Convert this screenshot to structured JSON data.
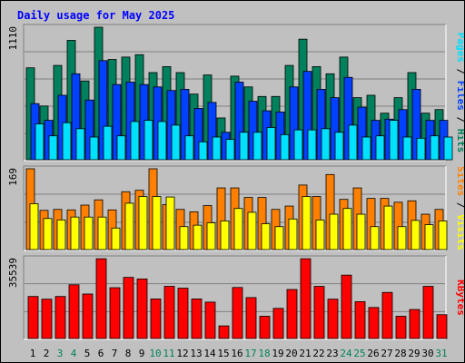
{
  "title": "Daily usage for May 2025",
  "colors": {
    "hits": "#00805c",
    "files": "#0040ff",
    "pages": "#00e0ff",
    "visits": "#ffff00",
    "sites": "#ff8000",
    "kbytes": "#ff0000",
    "title": "#0000ff",
    "weekend": "#00805c",
    "weekday": "#000000"
  },
  "chart_data": [
    {
      "type": "bar",
      "panel": "hits-files-pages",
      "title": "",
      "ylabel_max": "1110",
      "ylim": [
        0,
        1110
      ],
      "legend": [
        "Pages",
        "Files",
        "Hits"
      ],
      "x": [
        1,
        2,
        3,
        4,
        5,
        6,
        7,
        8,
        9,
        10,
        11,
        12,
        13,
        14,
        15,
        16,
        17,
        18,
        19,
        20,
        21,
        22,
        23,
        24,
        25,
        26,
        27,
        28,
        29,
        30,
        31
      ],
      "series": [
        {
          "name": "Hits",
          "values": [
            770,
            450,
            790,
            1000,
            660,
            1110,
            840,
            860,
            880,
            730,
            780,
            730,
            550,
            710,
            350,
            700,
            610,
            530,
            530,
            790,
            1010,
            780,
            720,
            860,
            520,
            540,
            390,
            520,
            730,
            390,
            420
          ]
        },
        {
          "name": "Files",
          "values": [
            470,
            330,
            540,
            720,
            500,
            830,
            630,
            650,
            630,
            610,
            580,
            590,
            430,
            480,
            230,
            650,
            490,
            410,
            400,
            610,
            740,
            590,
            520,
            690,
            440,
            330,
            340,
            420,
            590,
            330,
            330
          ]
        },
        {
          "name": "Pages",
          "values": [
            300,
            200,
            310,
            260,
            190,
            280,
            200,
            320,
            330,
            320,
            290,
            200,
            150,
            190,
            170,
            230,
            230,
            270,
            210,
            250,
            250,
            260,
            230,
            290,
            190,
            200,
            330,
            190,
            180,
            200,
            190
          ]
        }
      ]
    },
    {
      "type": "bar",
      "panel": "sites-visits",
      "title": "",
      "ylabel_max": "169",
      "ylim": [
        0,
        169
      ],
      "legend": [
        "Sites",
        "Visits"
      ],
      "x": [
        1,
        2,
        3,
        4,
        5,
        6,
        7,
        8,
        9,
        10,
        11,
        12,
        13,
        14,
        15,
        16,
        17,
        18,
        19,
        20,
        21,
        22,
        23,
        24,
        25,
        26,
        27,
        28,
        29,
        30,
        31
      ],
      "series": [
        {
          "name": "Sites",
          "values": [
            169,
            82,
            84,
            83,
            93,
            104,
            83,
            121,
            124,
            169,
            94,
            84,
            79,
            92,
            129,
            129,
            109,
            109,
            84,
            91,
            135,
            111,
            157,
            105,
            129,
            107,
            107,
            99,
            102,
            74,
            84
          ]
        },
        {
          "name": "Visits",
          "values": [
            96,
            65,
            62,
            68,
            68,
            68,
            45,
            97,
            111,
            111,
            110,
            48,
            51,
            56,
            60,
            86,
            78,
            54,
            48,
            64,
            111,
            62,
            74,
            86,
            74,
            48,
            91,
            48,
            61,
            52,
            60
          ]
        }
      ]
    },
    {
      "type": "bar",
      "panel": "kbytes",
      "title": "",
      "ylabel_max": "35539",
      "ylim": [
        0,
        35539
      ],
      "legend": [
        "KBytes"
      ],
      "x": [
        1,
        2,
        3,
        4,
        5,
        6,
        7,
        8,
        9,
        10,
        11,
        12,
        13,
        14,
        15,
        16,
        17,
        18,
        19,
        20,
        21,
        22,
        23,
        24,
        25,
        26,
        27,
        28,
        29,
        30,
        31
      ],
      "series": [
        {
          "name": "KBytes",
          "values": [
            18700,
            17500,
            18700,
            23900,
            19800,
            35500,
            22600,
            27200,
            26500,
            17600,
            23200,
            22400,
            17600,
            16200,
            5600,
            22700,
            18200,
            9900,
            13400,
            21800,
            35500,
            23200,
            17500,
            28200,
            16400,
            13800,
            20500,
            9900,
            12900,
            23200,
            10600
          ]
        }
      ]
    }
  ],
  "x_labels": [
    "1",
    "2",
    "3",
    "4",
    "5",
    "6",
    "7",
    "8",
    "9",
    "10",
    "11",
    "12",
    "13",
    "14",
    "15",
    "16",
    "17",
    "18",
    "19",
    "20",
    "21",
    "22",
    "23",
    "24",
    "25",
    "26",
    "27",
    "28",
    "29",
    "30",
    "31"
  ],
  "weekend_days": [
    3,
    4,
    10,
    11,
    17,
    18,
    24,
    25,
    31
  ]
}
